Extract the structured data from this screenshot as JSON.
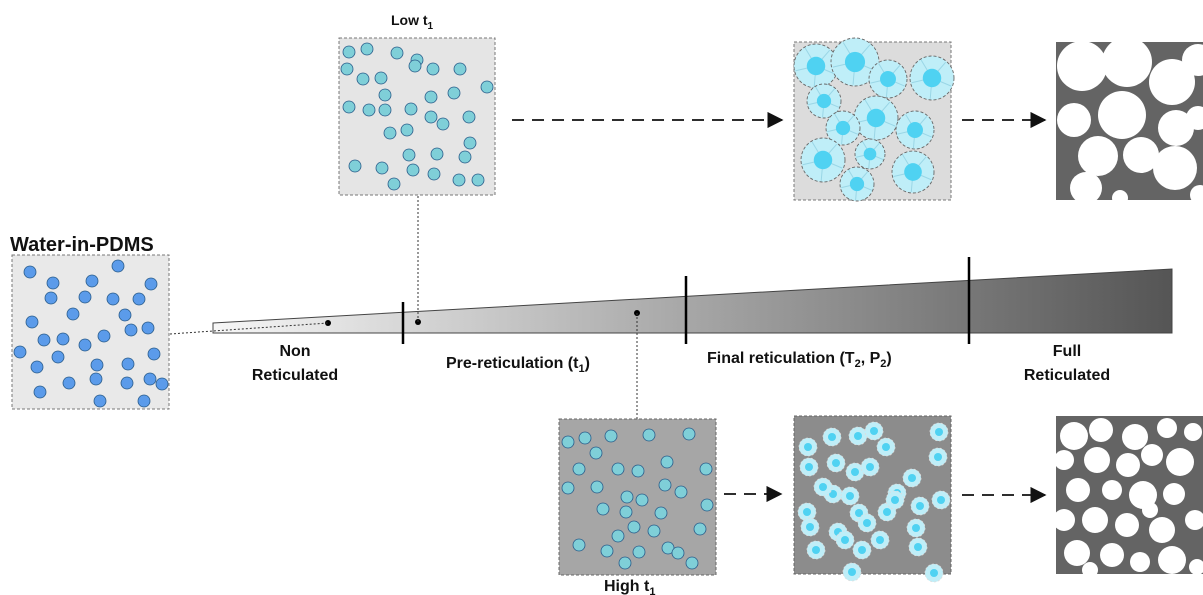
{
  "title": "Water-in-PDMS",
  "low_label": {
    "main": "Low t",
    "sub": "1"
  },
  "high_label": {
    "main": "High t",
    "sub": "1"
  },
  "stages": {
    "non": [
      "Non",
      "Reticulated"
    ],
    "pre": {
      "main": "Pre-reticulation (t",
      "sub": "1",
      "end": ")"
    },
    "final": {
      "main": "Final reticulation (T",
      "sub1": "2",
      "mid": ", P",
      "sub2": "2",
      "end": ")"
    },
    "full": [
      "Full",
      "Reticulated"
    ]
  },
  "colors": {
    "droplet_blue": "#5b9bea",
    "droplet_teal": "#7fcfd8",
    "cyan_core": "#4fd2f2",
    "cyan_halo": "#bfeef8",
    "panel_light": "#e5e5e5",
    "panel_dark": "#a6a6a6",
    "panel_darker": "#8c8c8c",
    "foam_dark": "#646464",
    "wedge_light": "#f7f7f7",
    "wedge_dark": "#555555"
  }
}
